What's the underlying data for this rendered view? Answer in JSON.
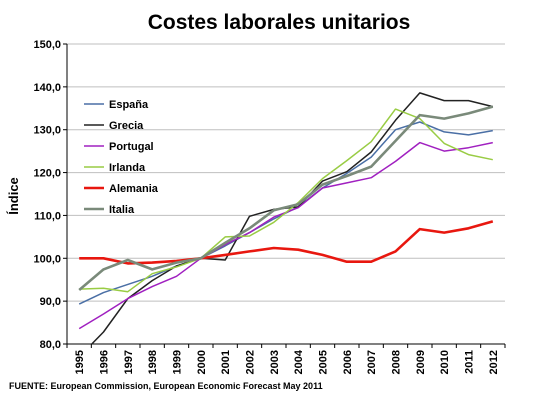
{
  "chart_data": {
    "type": "line",
    "title": "Costes laborales unitarios",
    "ylabel": "Índice",
    "xlabel": "",
    "ylim": [
      80,
      150
    ],
    "yticks": [
      "80,0",
      "90,0",
      "100,0",
      "110,0",
      "120,0",
      "130,0",
      "140,0",
      "150,0"
    ],
    "categories": [
      "1995",
      "1996",
      "1997",
      "1998",
      "1999",
      "2000",
      "2001",
      "2002",
      "2003",
      "2004",
      "2005",
      "2006",
      "2007",
      "2008",
      "2009",
      "2010",
      "2011",
      "2012"
    ],
    "grid": true,
    "legend_position": "top-left-inside",
    "series": [
      {
        "name": "España",
        "color": "#4a6fa5",
        "width": 1.5,
        "values": [
          89.3,
          92.0,
          93.9,
          95.8,
          98.2,
          100.0,
          102.9,
          106.0,
          109.2,
          112.0,
          116.4,
          119.8,
          123.6,
          130.0,
          131.8,
          129.5,
          128.8,
          129.8
        ]
      },
      {
        "name": "Grecia",
        "color": "#222222",
        "width": 1.5,
        "values": [
          77.0,
          82.8,
          90.6,
          94.8,
          98.2,
          100.0,
          99.6,
          109.8,
          111.4,
          112.0,
          118.0,
          120.2,
          124.8,
          132.2,
          138.6,
          136.8,
          136.8,
          135.4
        ]
      },
      {
        "name": "Portugal",
        "color": "#a020c0",
        "width": 1.5,
        "values": [
          83.6,
          87.0,
          90.6,
          93.4,
          95.8,
          100.0,
          103.2,
          106.0,
          109.6,
          111.8,
          116.4,
          117.6,
          118.8,
          122.6,
          127.0,
          125.0,
          125.8,
          127.0
        ]
      },
      {
        "name": "Irlanda",
        "color": "#99cc44",
        "width": 1.5,
        "values": [
          92.8,
          93.0,
          92.2,
          96.4,
          98.0,
          100.0,
          105.0,
          105.2,
          108.4,
          113.0,
          118.6,
          122.8,
          127.2,
          134.8,
          132.6,
          126.8,
          124.2,
          123.0
        ]
      },
      {
        "name": "Alemania",
        "color": "#e8170f",
        "width": 2.6,
        "values": [
          100.0,
          100.0,
          98.8,
          99.0,
          99.4,
          100.0,
          100.8,
          101.6,
          102.4,
          102.0,
          100.8,
          99.2,
          99.2,
          101.6,
          106.8,
          106.0,
          107.0,
          108.6
        ]
      },
      {
        "name": "Italia",
        "color": "#7a8a7a",
        "width": 2.6,
        "values": [
          92.6,
          97.4,
          99.6,
          97.4,
          99.0,
          100.0,
          103.6,
          107.0,
          111.2,
          112.6,
          117.2,
          119.2,
          121.4,
          127.4,
          133.4,
          132.6,
          133.8,
          135.4
        ]
      }
    ],
    "source": "FUENTE: European Commission, European Economic Forecast May 2011"
  }
}
